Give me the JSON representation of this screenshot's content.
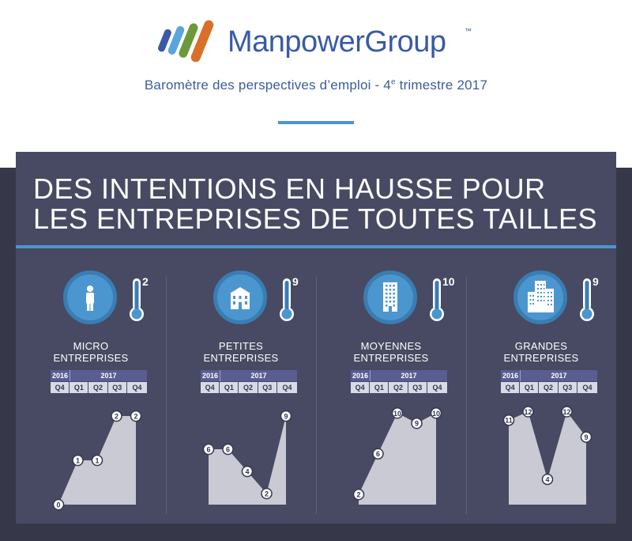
{
  "header": {
    "brand": "ManpowerGroup",
    "trademark": "™",
    "subtitle_pre": "Baromètre des perspectives d’emploi - 4",
    "subtitle_sup": "e",
    "subtitle_post": " trimestre 2017"
  },
  "headline": {
    "line1": "DES INTENTIONS EN HAUSSE POUR",
    "line2": "LES ENTREPRISES DE TOUTES TAILLES"
  },
  "colors": {
    "accent": "#4c96cf",
    "panel": "#474a62",
    "area": "#c9cad3"
  },
  "table_header": {
    "year_prev": "2016",
    "year_curr": "2017",
    "quarters": [
      "Q4",
      "Q1",
      "Q2",
      "Q3",
      "Q4"
    ]
  },
  "chart_data": [
    {
      "type": "area",
      "title_line1": "MICRO",
      "title_line2": "ENTREPRISES",
      "icon": "person-icon",
      "thermometer_value": "2",
      "categories": [
        "Q4 2016",
        "Q1 2017",
        "Q2 2017",
        "Q3 2017",
        "Q4 2017"
      ],
      "values": [
        0,
        1,
        1,
        2,
        2
      ],
      "ylim": [
        0,
        2.25
      ]
    },
    {
      "type": "area",
      "title_line1": "PETITES",
      "title_line2": "ENTREPRISES",
      "icon": "small-building-icon",
      "thermometer_value": "9",
      "categories": [
        "Q4 2016",
        "Q1 2017",
        "Q2 2017",
        "Q3 2017",
        "Q4 2017"
      ],
      "values": [
        6,
        6,
        4,
        2,
        9
      ],
      "ylim": [
        1,
        10
      ]
    },
    {
      "type": "area",
      "title_line1": "MOYENNES",
      "title_line2": "ENTREPRISES",
      "icon": "office-tower-icon",
      "thermometer_value": "10",
      "categories": [
        "Q4 2016",
        "Q1 2017",
        "Q2 2017",
        "Q3 2017",
        "Q4 2017"
      ],
      "values": [
        2,
        6,
        10,
        9,
        10
      ],
      "ylim": [
        1,
        10.8
      ]
    },
    {
      "type": "area",
      "title_line1": "GRANDES",
      "title_line2": "ENTREPRISES",
      "icon": "skyscrapers-icon",
      "thermometer_value": "9",
      "categories": [
        "Q4 2016",
        "Q1 2017",
        "Q2 2017",
        "Q3 2017",
        "Q4 2017"
      ],
      "values": [
        11,
        12,
        4,
        12,
        9
      ],
      "ylim": [
        1,
        12.8
      ]
    }
  ]
}
